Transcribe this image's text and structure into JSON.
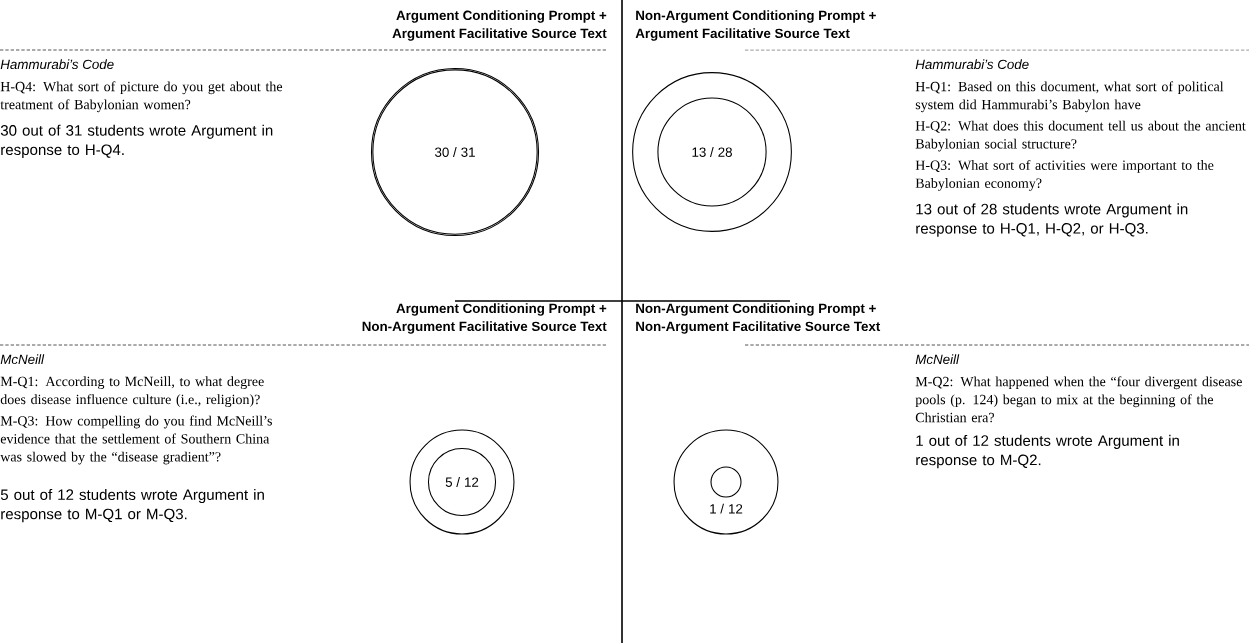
{
  "chart_data": [
    {
      "type": "other",
      "title": "Argument Conditioning Prompt +",
      "subtitle": "Argument Facilitative Source Text",
      "annotations": [
        "Hammurabi’s Code",
        "H-Q4: What sort of picture do you get about the treatment of Babylonian women?",
        "30 out of 31 students wrote Argument in response to H-Q4."
      ],
      "values": [
        30,
        31
      ],
      "value_labels": [
        "30 /",
        "31"
      ]
    },
    {
      "type": "other",
      "title": "Non-Argument Conditioning Prompt +",
      "subtitle": "Argument Facilitative Source Text",
      "annotations": [
        "Hammurabi’s Code",
        "H-Q1: Based on this document, what sort of political system did Hammurabi’s Babylon have",
        "H-Q2: What does this document tell us about the ancient Babylonian social structure?",
        "H-Q3: What sort of activities were important to the Babylonian economy?",
        "13 out of 28 students wrote Argument in response to H-Q1, H-Q2, or H-Q3."
      ],
      "values": [
        13,
        28
      ],
      "value_labels": [
        "13 /",
        "28"
      ]
    },
    {
      "type": "other",
      "title": "Argument Conditioning Prompt +",
      "subtitle": "Non-Argument Facilitative Source Text",
      "annotations": [
        "McNeill",
        "M-Q1: According to McNeill, to what degree does disease influence culture (i.e., religion)?",
        "M-Q3: How compelling do you find McNeill’s evidence that the settlement of Southern China was slowed by the “disease gradient”?",
        "5 out of 12 students wrote Argument in response to M-Q1 or M-Q3."
      ],
      "values": [
        5,
        12
      ],
      "value_labels": [
        "5 /",
        "12"
      ]
    },
    {
      "type": "other",
      "title": "Non-Argument Conditioning Prompt +",
      "subtitle": "Non-Argument Facilitative Source Text",
      "annotations": [
        "McNeill",
        "M-Q2: What happened when the “four divergent disease pools (p. 124) began to mix at the beginning of the Christian era?",
        "1 out of 12 students wrote Argument in response to M-Q2."
      ],
      "values": [
        1,
        12
      ],
      "value_labels": [
        "1 /",
        "12"
      ]
    }
  ]
}
